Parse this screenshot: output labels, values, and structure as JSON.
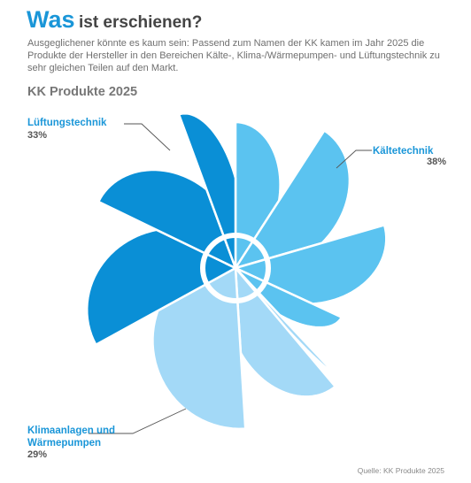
{
  "header": {
    "title_accent": "Was",
    "title_rest": "ist erschienen?",
    "intro": "Ausgeglichener könnte es kaum sein: Passend zum Namen der KK kamen im Jahr 2025 die Produkte der Hersteller in den Bereichen Kälte-, Klima-/Wärmepumpen- und Lüftungstechnik zu sehr gleichen Teilen auf den Markt."
  },
  "chart_data": {
    "type": "pie",
    "title": "KK Produkte 2025",
    "categories": [
      "Kältetechnik",
      "Klimaanlagen und\nWärmepumpen",
      "Lüftungstechnik"
    ],
    "values": [
      38,
      29,
      33
    ],
    "value_labels": [
      "38%",
      "29%",
      "33%"
    ],
    "colors": [
      "#5bc3f0",
      "#a3d9f7",
      "#0a8fd6"
    ],
    "source": "Quelle: KK Produkte 2025"
  }
}
